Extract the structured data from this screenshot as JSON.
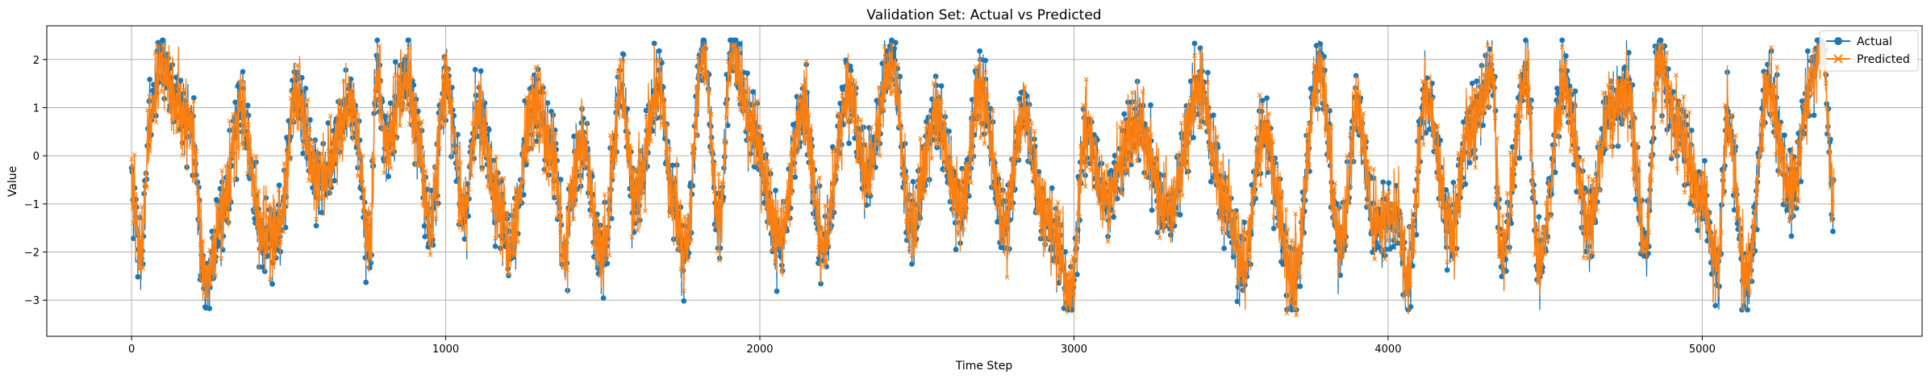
{
  "chart_data": {
    "type": "line",
    "title": "Validation Set: Actual vs Predicted",
    "xlabel": "Time Step",
    "ylabel": "Value",
    "xlim": [
      -270,
      5700
    ],
    "ylim": [
      -3.75,
      2.7
    ],
    "x_ticks": [
      0,
      1000,
      2000,
      3000,
      4000,
      5000
    ],
    "x_tick_labels": [
      "0",
      "1000",
      "2000",
      "3000",
      "4000",
      "5000"
    ],
    "y_ticks": [
      -3,
      -2,
      -1,
      0,
      1,
      2
    ],
    "y_tick_labels": [
      "−3",
      "−2",
      "−1",
      "0",
      "1",
      "2"
    ],
    "grid": true,
    "legend_position": "top-right",
    "n_points": 5420,
    "series": [
      {
        "name": "Actual",
        "color": "#1f77b4",
        "marker": "circle",
        "anchor_x": [
          0,
          30,
          60,
          95,
          140,
          190,
          235,
          290,
          350,
          420,
          470,
          520,
          600,
          700,
          760,
          780,
          810,
          880,
          905,
          950,
          1000,
          1060,
          1100,
          1180,
          1200,
          1280,
          1340,
          1380,
          1400,
          1430,
          1500,
          1560,
          1600,
          1680,
          1720,
          1760,
          1820,
          1870,
          1910,
          1980,
          2060,
          2140,
          2200,
          2280,
          2340,
          2420,
          2480,
          2560,
          2640,
          2700,
          2780,
          2840,
          2900,
          2950,
          2985,
          3040,
          3100,
          3200,
          3300,
          3400,
          3480,
          3540,
          3600,
          3700,
          3780,
          3850,
          3900,
          3960,
          4030,
          4060,
          4120,
          4200,
          4260,
          4330,
          4360,
          4440,
          4480,
          4560,
          4640,
          4700,
          4760,
          4820,
          4860,
          4920,
          5000,
          5050,
          5080,
          5140,
          5210,
          5280,
          5350,
          5380,
          5420
        ],
        "anchor_y": [
          -0.7,
          -2.1,
          0.9,
          2.1,
          1.2,
          0.6,
          -2.8,
          -1.2,
          1.0,
          -1.8,
          -1.6,
          1.3,
          -0.6,
          1.1,
          -1.9,
          1.9,
          0.3,
          1.8,
          0.5,
          -1.5,
          1.5,
          -1.2,
          0.9,
          -1.2,
          -2.0,
          1.1,
          0.2,
          -2.2,
          -0.9,
          0.3,
          -2.1,
          1.5,
          -1.0,
          1.5,
          -0.8,
          -2.0,
          2.2,
          -1.5,
          2.3,
          0.5,
          -1.8,
          1.0,
          -2.0,
          1.3,
          -0.4,
          2.0,
          -1.5,
          0.8,
          -1.2,
          1.4,
          -1.5,
          1.0,
          -1.2,
          -1.8,
          -3.2,
          0.6,
          -0.9,
          0.7,
          -1.2,
          1.4,
          -1.0,
          -2.4,
          0.5,
          -2.6,
          1.9,
          -1.9,
          1.0,
          -1.5,
          -1.2,
          -2.7,
          1.3,
          -1.6,
          0.6,
          1.8,
          -2.1,
          1.7,
          -2.3,
          1.5,
          -1.5,
          0.9,
          1.4,
          -1.9,
          2.0,
          0.6,
          -0.9,
          -2.4,
          0.8,
          -2.7,
          1.5,
          -0.8,
          1.6,
          2.4,
          -1.0
        ],
        "y_range": [
          -3.2,
          2.4
        ]
      },
      {
        "name": "Predicted",
        "color": "#ff7f0e",
        "marker": "x",
        "y_range": [
          -3.4,
          2.3
        ]
      }
    ]
  }
}
